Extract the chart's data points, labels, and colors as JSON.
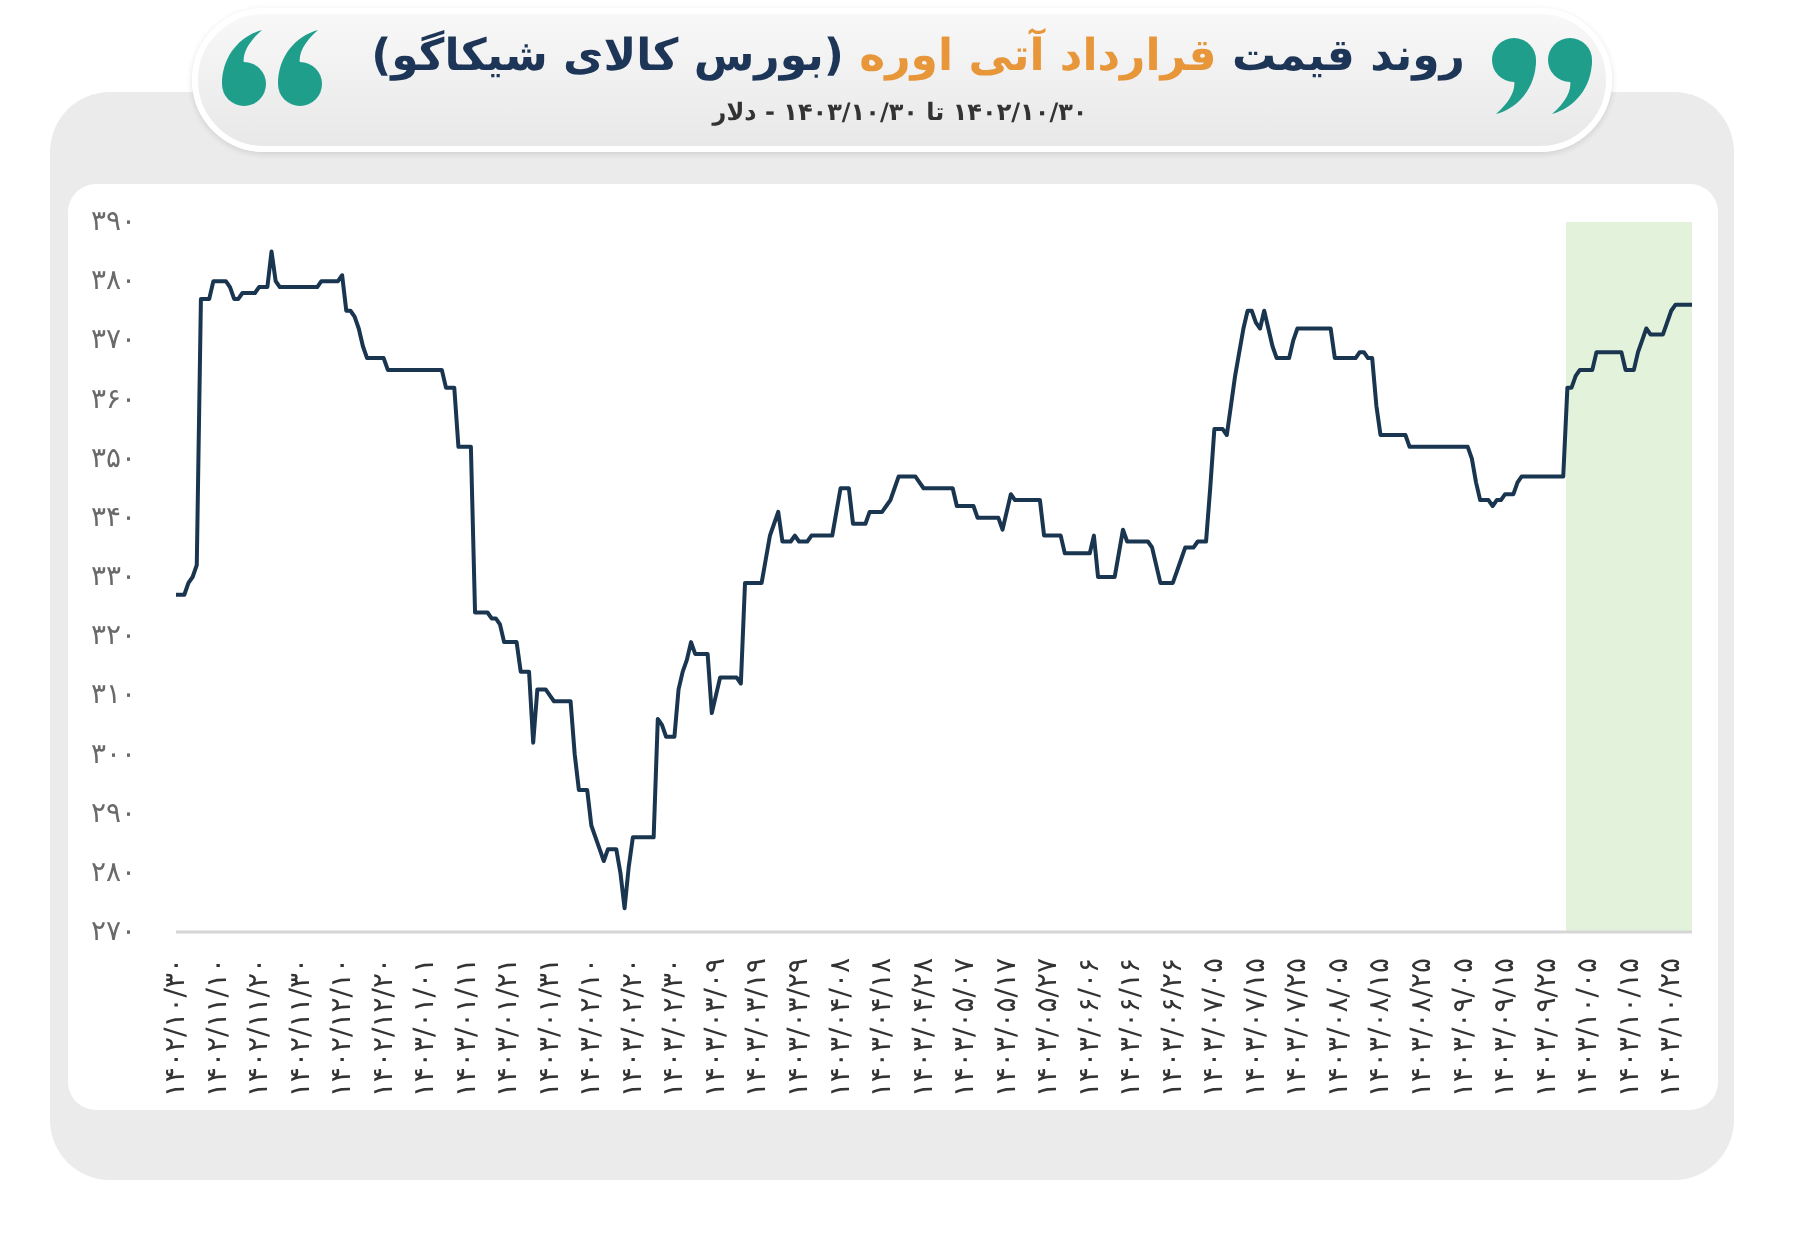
{
  "chart_data": {
    "type": "line",
    "title": "روند قیمت قرارداد آتی اوره (بورس کالای شیکاگو)",
    "subtitle": "۱۴۰۲/۱۰/۳۰ تا ۱۴۰۳/۱۰/۳۰ - دلار",
    "categories": [
      "۱۴۰۲/۱۰/۳۰",
      null,
      null,
      null,
      null,
      null,
      null,
      null,
      null,
      null,
      "۱۴۰۲/۱۱/۱۰",
      null,
      null,
      null,
      null,
      null,
      null,
      null,
      null,
      null,
      "۱۴۰۲/۱۱/۲۰",
      null,
      null,
      null,
      null,
      null,
      null,
      null,
      null,
      null,
      "۱۴۰۲/۱۱/۳۰",
      null,
      null,
      null,
      null,
      null,
      null,
      null,
      null,
      null,
      "۱۴۰۲/۱۲/۱۰",
      null,
      null,
      null,
      null,
      null,
      null,
      null,
      null,
      null,
      "۱۴۰۲/۱۲/۲۰",
      null,
      null,
      null,
      null,
      null,
      null,
      null,
      null,
      null,
      "۱۴۰۳/۰۱/۰۱",
      null,
      null,
      null,
      null,
      null,
      null,
      null,
      null,
      null,
      "۱۴۰۳/۰۱/۱۱",
      null,
      null,
      null,
      null,
      null,
      null,
      null,
      null,
      null,
      "۱۴۰۳/۰۱/۲۱",
      null,
      null,
      null,
      null,
      null,
      null,
      null,
      null,
      null,
      "۱۴۰۳/۰۱/۳۱",
      null,
      null,
      null,
      null,
      null,
      null,
      null,
      null,
      null,
      "۱۴۰۳/۰۲/۱۰",
      null,
      null,
      null,
      null,
      null,
      null,
      null,
      null,
      null,
      "۱۴۰۳/۰۲/۲۰",
      null,
      null,
      null,
      null,
      null,
      null,
      null,
      null,
      null,
      "۱۴۰۳/۰۲/۳۰",
      null,
      null,
      null,
      null,
      null,
      null,
      null,
      null,
      null,
      "۱۴۰۳/۰۳/۰۹",
      null,
      null,
      null,
      null,
      null,
      null,
      null,
      null,
      null,
      "۱۴۰۳/۰۳/۱۹",
      null,
      null,
      null,
      null,
      null,
      null,
      null,
      null,
      null,
      "۱۴۰۳/۰۳/۲۹",
      null,
      null,
      null,
      null,
      null,
      null,
      null,
      null,
      null,
      "۱۴۰۳/۰۴/۰۸",
      null,
      null,
      null,
      null,
      null,
      null,
      null,
      null,
      null,
      "۱۴۰۳/۰۴/۱۸",
      null,
      null,
      null,
      null,
      null,
      null,
      null,
      null,
      null,
      "۱۴۰۳/۰۴/۲۸",
      null,
      null,
      null,
      null,
      null,
      null,
      null,
      null,
      null,
      "۱۴۰۳/۰۵/۰۷",
      null,
      null,
      null,
      null,
      null,
      null,
      null,
      null,
      null,
      "۱۴۰۳/۰۵/۱۷",
      null,
      null,
      null,
      null,
      null,
      null,
      null,
      null,
      null,
      "۱۴۰۳/۰۵/۲۷",
      null,
      null,
      null,
      null,
      null,
      null,
      null,
      null,
      null,
      "۱۴۰۳/۰۶/۰۶",
      null,
      null,
      null,
      null,
      null,
      null,
      null,
      null,
      null,
      "۱۴۰۳/۰۶/۱۶",
      null,
      null,
      null,
      null,
      null,
      null,
      null,
      null,
      null,
      "۱۴۰۳/۰۶/۲۶",
      null,
      null,
      null,
      null,
      null,
      null,
      null,
      null,
      null,
      "۱۴۰۳/۰۷/۰۵",
      null,
      null,
      null,
      null,
      null,
      null,
      null,
      null,
      null,
      "۱۴۰۳/۰۷/۱۵",
      null,
      null,
      null,
      null,
      null,
      null,
      null,
      null,
      null,
      "۱۴۰۳/۰۷/۲۵",
      null,
      null,
      null,
      null,
      null,
      null,
      null,
      null,
      null,
      "۱۴۰۳/۰۸/۰۵",
      null,
      null,
      null,
      null,
      null,
      null,
      null,
      null,
      null,
      "۱۴۰۳/۰۸/۱۵",
      null,
      null,
      null,
      null,
      null,
      null,
      null,
      null,
      null,
      "۱۴۰۳/۰۸/۲۵",
      null,
      null,
      null,
      null,
      null,
      null,
      null,
      null,
      null,
      "۱۴۰۳/۰۹/۰۵",
      null,
      null,
      null,
      null,
      null,
      null,
      null,
      null,
      null,
      "۱۴۰۳/۰۹/۱۵",
      null,
      null,
      null,
      null,
      null,
      null,
      null,
      null,
      null,
      "۱۴۰۳/۰۹/۲۵",
      null,
      null,
      null,
      null,
      null,
      null,
      null,
      null,
      null,
      "۱۴۰۳/۱۰/۰۵",
      null,
      null,
      null,
      null,
      null,
      null,
      null,
      null,
      null,
      "۱۴۰۳/۱۰/۱۵",
      null,
      null,
      null,
      null,
      null,
      null,
      null,
      null,
      null,
      "۱۴۰۳/۱۰/۲۵",
      null,
      null,
      null,
      null,
      null
    ],
    "series": [
      {
        "color": "#1a3550",
        "values": [
          327,
          327,
          327,
          329,
          330,
          332,
          377,
          377,
          377,
          380,
          380,
          380,
          380,
          379,
          377,
          377,
          378,
          378,
          378,
          378,
          379,
          379,
          379,
          385,
          380,
          379,
          379,
          379,
          379,
          379,
          379,
          379,
          379,
          379,
          379,
          380,
          380,
          380,
          380,
          380,
          381,
          375,
          375,
          374,
          372,
          369,
          367,
          367,
          367,
          367,
          367,
          365,
          365,
          365,
          365,
          365,
          365,
          365,
          365,
          365,
          365,
          365,
          365,
          365,
          365,
          362,
          362,
          362,
          352,
          352,
          352,
          352,
          324,
          324,
          324,
          324,
          323,
          323,
          322,
          319,
          319,
          319,
          319,
          314,
          314,
          314,
          302,
          311,
          311,
          311,
          310,
          309,
          309,
          309,
          309,
          309,
          300,
          294,
          294,
          294,
          288,
          286,
          284,
          282,
          284,
          284,
          284,
          280,
          274,
          281,
          286,
          286,
          286,
          286,
          286,
          286,
          306,
          305,
          303,
          303,
          303,
          311,
          314,
          316,
          319,
          317,
          317,
          317,
          317,
          307,
          310,
          313,
          313,
          313,
          313,
          313,
          312,
          329,
          329,
          329,
          329,
          329,
          333,
          337,
          339,
          341,
          336,
          336,
          336,
          337,
          336,
          336,
          336,
          337,
          337,
          337,
          337,
          337,
          337,
          341,
          345,
          345,
          345,
          339,
          339,
          339,
          339,
          341,
          341,
          341,
          341,
          342,
          343,
          345,
          347,
          347,
          347,
          347,
          347,
          346,
          345,
          345,
          345,
          345,
          345,
          345,
          345,
          345,
          342,
          342,
          342,
          342,
          342,
          340,
          340,
          340,
          340,
          340,
          340,
          338,
          341,
          344,
          343,
          343,
          343,
          343,
          343,
          343,
          343,
          337,
          337,
          337,
          337,
          337,
          334,
          334,
          334,
          334,
          334,
          334,
          334,
          337,
          330,
          330,
          330,
          330,
          330,
          334,
          338,
          336,
          336,
          336,
          336,
          336,
          336,
          335,
          332,
          329,
          329,
          329,
          329,
          331,
          333,
          335,
          335,
          335,
          336,
          336,
          336,
          345,
          355,
          355,
          355,
          354,
          359,
          364,
          368,
          372,
          375,
          375,
          373,
          372,
          375,
          372,
          369,
          367,
          367,
          367,
          367,
          370,
          372,
          372,
          372,
          372,
          372,
          372,
          372,
          372,
          372,
          367,
          367,
          367,
          367,
          367,
          367,
          368,
          368,
          367,
          367,
          359,
          354,
          354,
          354,
          354,
          354,
          354,
          354,
          352,
          352,
          352,
          352,
          352,
          352,
          352,
          352,
          352,
          352,
          352,
          352,
          352,
          352,
          352,
          350,
          346,
          343,
          343,
          343,
          342,
          343,
          343,
          344,
          344,
          344,
          346,
          347,
          347,
          347,
          347,
          347,
          347,
          347,
          347,
          347,
          347,
          347,
          362,
          362,
          364,
          365,
          365,
          365,
          365,
          368,
          368,
          368,
          368,
          368,
          368,
          368,
          365,
          365,
          365,
          368,
          370,
          372,
          371,
          371,
          371,
          371,
          373,
          375,
          376,
          376,
          376,
          376,
          376
        ]
      }
    ],
    "ylim": [
      270,
      390
    ],
    "yticks": [
      {
        "value": 270,
        "label": "۲۷۰"
      },
      {
        "value": 280,
        "label": "۲۸۰"
      },
      {
        "value": 290,
        "label": "۲۹۰"
      },
      {
        "value": 300,
        "label": "۳۰۰"
      },
      {
        "value": 310,
        "label": "۳۱۰"
      },
      {
        "value": 320,
        "label": "۳۲۰"
      },
      {
        "value": 330,
        "label": "۳۳۰"
      },
      {
        "value": 340,
        "label": "۳۴۰"
      },
      {
        "value": 350,
        "label": "۳۵۰"
      },
      {
        "value": 360,
        "label": "۳۶۰"
      },
      {
        "value": 370,
        "label": "۳۷۰"
      },
      {
        "value": 380,
        "label": "۳۸۰"
      },
      {
        "value": 390,
        "label": "۳۹۰"
      }
    ],
    "marker": "none",
    "line_style": "solid"
  }
}
